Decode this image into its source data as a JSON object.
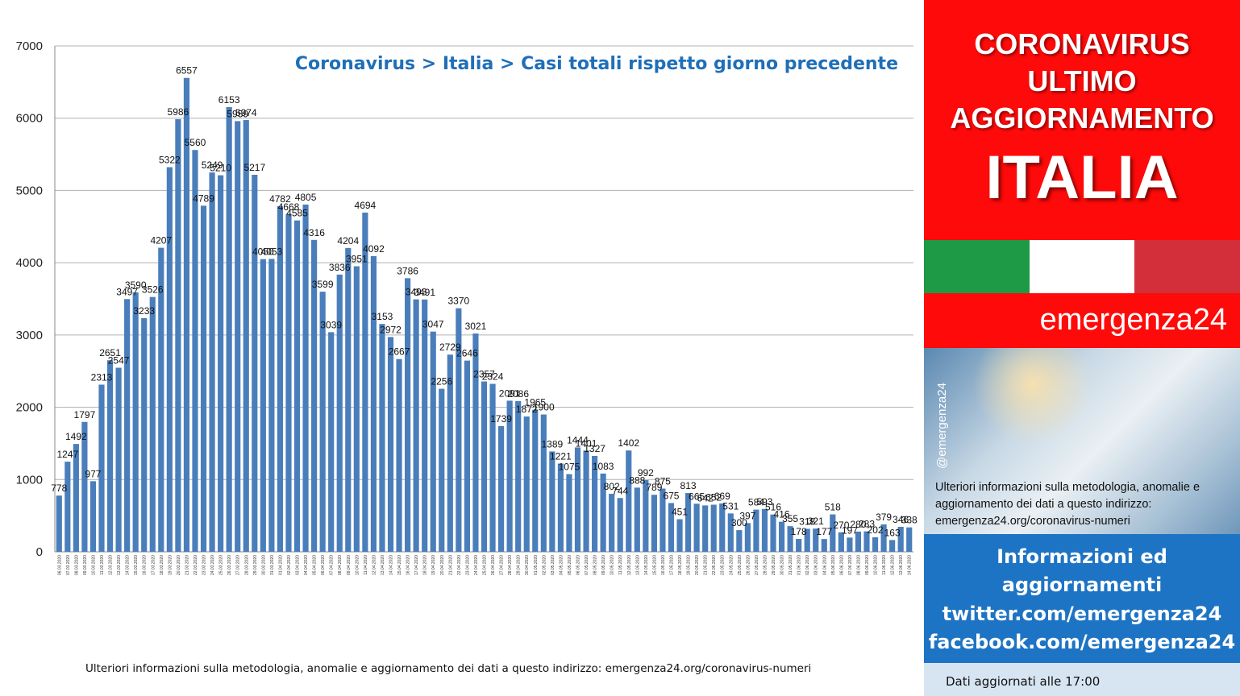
{
  "chart_data": {
    "type": "bar",
    "title": "Coronavirus > Italia > Casi totali rispetto giorno precedente",
    "xlabel": "",
    "ylabel": "",
    "ylim": [
      0,
      7000
    ],
    "yticks": [
      0,
      1000,
      2000,
      3000,
      4000,
      5000,
      6000,
      7000
    ],
    "grid": true,
    "bar_color": "#4a7ebb",
    "categories": [
      "06.03.2020",
      "07.03.2020",
      "08.03.2020",
      "09.03.2020",
      "10.03.2020",
      "11.03.2020",
      "12.03.2020",
      "13.03.2020",
      "14.03.2020",
      "15.03.2020",
      "16.03.2020",
      "17.03.2020",
      "18.03.2020",
      "19.03.2020",
      "20.03.2020",
      "21.03.2020",
      "22.03.2020",
      "23.03.2020",
      "24.03.2020",
      "25.03.2020",
      "26.03.2020",
      "27.03.2020",
      "28.03.2020",
      "29.03.2020",
      "30.03.2020",
      "31.03.2020",
      "01.04.2020",
      "02.04.2020",
      "03.04.2020",
      "04.04.2020",
      "05.04.2020",
      "06.04.2020",
      "07.04.2020",
      "08.04.2020",
      "09.04.2020",
      "10.04.2020",
      "11.04.2020",
      "12.04.2020",
      "13.04.2020",
      "14.04.2020",
      "15.04.2020",
      "16.04.2020",
      "17.04.2020",
      "18.04.2020",
      "19.04.2020",
      "20.04.2020",
      "21.04.2020",
      "22.04.2020",
      "23.04.2020",
      "24.04.2020",
      "25.04.2020",
      "26.04.2020",
      "27.04.2020",
      "28.04.2020",
      "29.04.2020",
      "30.04.2020",
      "01.05.2020",
      "02.05.2020",
      "03.05.2020",
      "04.05.2020",
      "05.05.2020",
      "06.05.2020",
      "07.05.2020",
      "08.05.2020",
      "09.05.2020",
      "10.05.2020",
      "11.05.2020",
      "12.05.2020",
      "13.05.2020",
      "14.05.2020",
      "15.05.2020",
      "16.05.2020",
      "17.05.2020",
      "18.05.2020",
      "19.05.2020",
      "20.05.2020",
      "21.05.2020",
      "22.05.2020",
      "23.05.2020",
      "24.05.2020",
      "25.05.2020",
      "26.05.2020",
      "27.05.2020",
      "28.05.2020",
      "29.05.2020",
      "30.05.2020",
      "31.05.2020",
      "01.06.2020",
      "02.06.2020",
      "03.06.2020",
      "04.06.2020",
      "05.06.2020",
      "06.06.2020",
      "07.06.2020",
      "08.06.2020",
      "09.06.2020",
      "10.06.2020",
      "11.06.2020",
      "12.06.2020",
      "13.06.2020",
      "14.06.2020"
    ],
    "values": [
      778,
      1247,
      1492,
      1797,
      977,
      2313,
      2651,
      2547,
      3497,
      3590,
      3233,
      3526,
      4207,
      5322,
      5986,
      6557,
      5560,
      4789,
      5249,
      5210,
      6153,
      5959,
      5974,
      5217,
      4050,
      4053,
      4782,
      4668,
      4585,
      4805,
      4316,
      3599,
      3039,
      3836,
      4204,
      3951,
      4694,
      4092,
      3153,
      2972,
      2667,
      3786,
      3493,
      3491,
      3047,
      2256,
      2729,
      3370,
      2646,
      3021,
      2357,
      2324,
      1739,
      2091,
      2086,
      1872,
      1965,
      1900,
      1389,
      1221,
      1075,
      1444,
      1401,
      1327,
      1083,
      802,
      744,
      1402,
      888,
      992,
      789,
      875,
      675,
      451,
      813,
      665,
      642,
      652,
      669,
      531,
      300,
      397,
      584,
      593,
      516,
      416,
      355,
      178,
      318,
      321,
      177,
      518,
      270,
      197,
      280,
      283,
      202,
      379,
      163,
      346,
      338
    ]
  },
  "footer_note": "Ulteriori informazioni sulla metodologia, anomalie e aggiornamento dei dati a questo indirizzo: emergenza24.org/coronavirus-numeri",
  "sidebar": {
    "header": [
      "CORONAVIRUS",
      "ULTIMO",
      "AGGIORNAMENTO"
    ],
    "country": "ITALIA",
    "flag_colors": [
      "#1e9a46",
      "#ffffff",
      "#d32f3a"
    ],
    "brand": "emergenza24",
    "handle": "@emergenza24",
    "photo_note": "Ulteriori informazioni sulla metodologia, anomalie e aggiornamento dei dati a questo indirizzo: emergenza24.org/coronavirus-numeri",
    "info_lines": [
      "Informazioni ed",
      "aggiornamenti",
      "twitter.com/emergenza24",
      "facebook.com/emergenza24"
    ],
    "update_text": "Dati aggiornati alle 17:00"
  }
}
